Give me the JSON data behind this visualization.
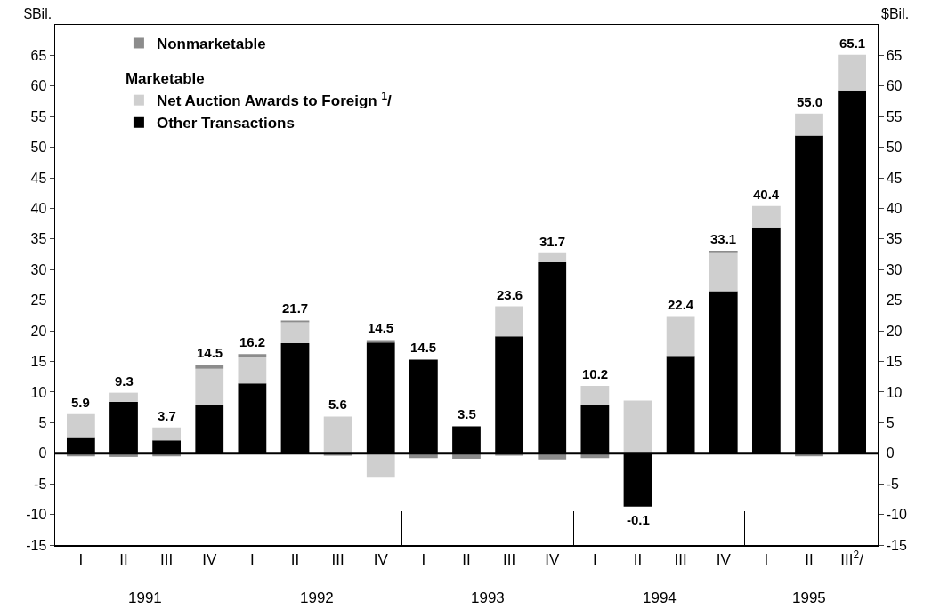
{
  "chart_data": {
    "type": "bar",
    "stacked": true,
    "categories": [
      "I",
      "II",
      "III",
      "IV",
      "I",
      "II",
      "III",
      "IV",
      "I",
      "II",
      "III",
      "IV",
      "I",
      "II",
      "III",
      "IV",
      "I",
      "II",
      "III$^{2}$/"
    ],
    "series": [
      {
        "name": "Other Transactions",
        "color": "#000000",
        "values": [
          2.5,
          8.4,
          2.1,
          7.9,
          11.4,
          18.0,
          null,
          18.1,
          15.3,
          4.4,
          19.1,
          31.2,
          7.9,
          -8.7,
          15.9,
          26.5,
          36.9,
          51.9,
          59.3
        ]
      },
      {
        "name": "Net Auction Awards to Foreign $^{1}$/",
        "color": "#cfcfcf",
        "values": [
          3.9,
          1.5,
          2.1,
          5.9,
          4.4,
          3.4,
          6.0,
          -4.0,
          null,
          null,
          4.9,
          1.5,
          3.1,
          8.6,
          6.5,
          6.2,
          3.5,
          3.6,
          5.8
        ]
      },
      {
        "name": "Nonmarketable",
        "color": "#8c8c8c",
        "values": [
          -0.5,
          -0.6,
          -0.5,
          0.7,
          0.4,
          0.3,
          -0.4,
          0.4,
          -0.8,
          -0.9,
          -0.4,
          -1.0,
          -0.8,
          null,
          null,
          0.4,
          null,
          -0.5,
          null
        ]
      }
    ],
    "totals": [
      "5.9",
      "9.3",
      "3.7",
      "14.5",
      "16.2",
      "21.7",
      "5.6",
      "14.5",
      "14.5",
      "3.5",
      "23.6",
      "31.7",
      "10.2",
      "-0.1",
      "22.4",
      "33.1",
      "40.4",
      "55.0",
      "65.1"
    ],
    "legend_title": "Marketable",
    "annotations": [
      "1991",
      "1992",
      "1993",
      "1994",
      "1995"
    ],
    "ylabel": "$Bil.",
    "y2label": "$Bil.",
    "ylim": [
      -15,
      70
    ],
    "yticks": [
      -15,
      -10,
      -5,
      0,
      5,
      10,
      15,
      20,
      25,
      30,
      35,
      40,
      45,
      50,
      55,
      60,
      65
    ],
    "y2lim": [
      -15,
      70
    ],
    "ref_lines": [
      {
        "axis": "y",
        "value": 0
      }
    ],
    "y2ticks": [
      -15,
      -10,
      -5,
      0,
      5,
      10,
      15,
      20,
      25,
      30,
      35,
      40,
      45,
      50,
      55,
      60,
      65
    ],
    "grid": false,
    "legend": "top left"
  }
}
